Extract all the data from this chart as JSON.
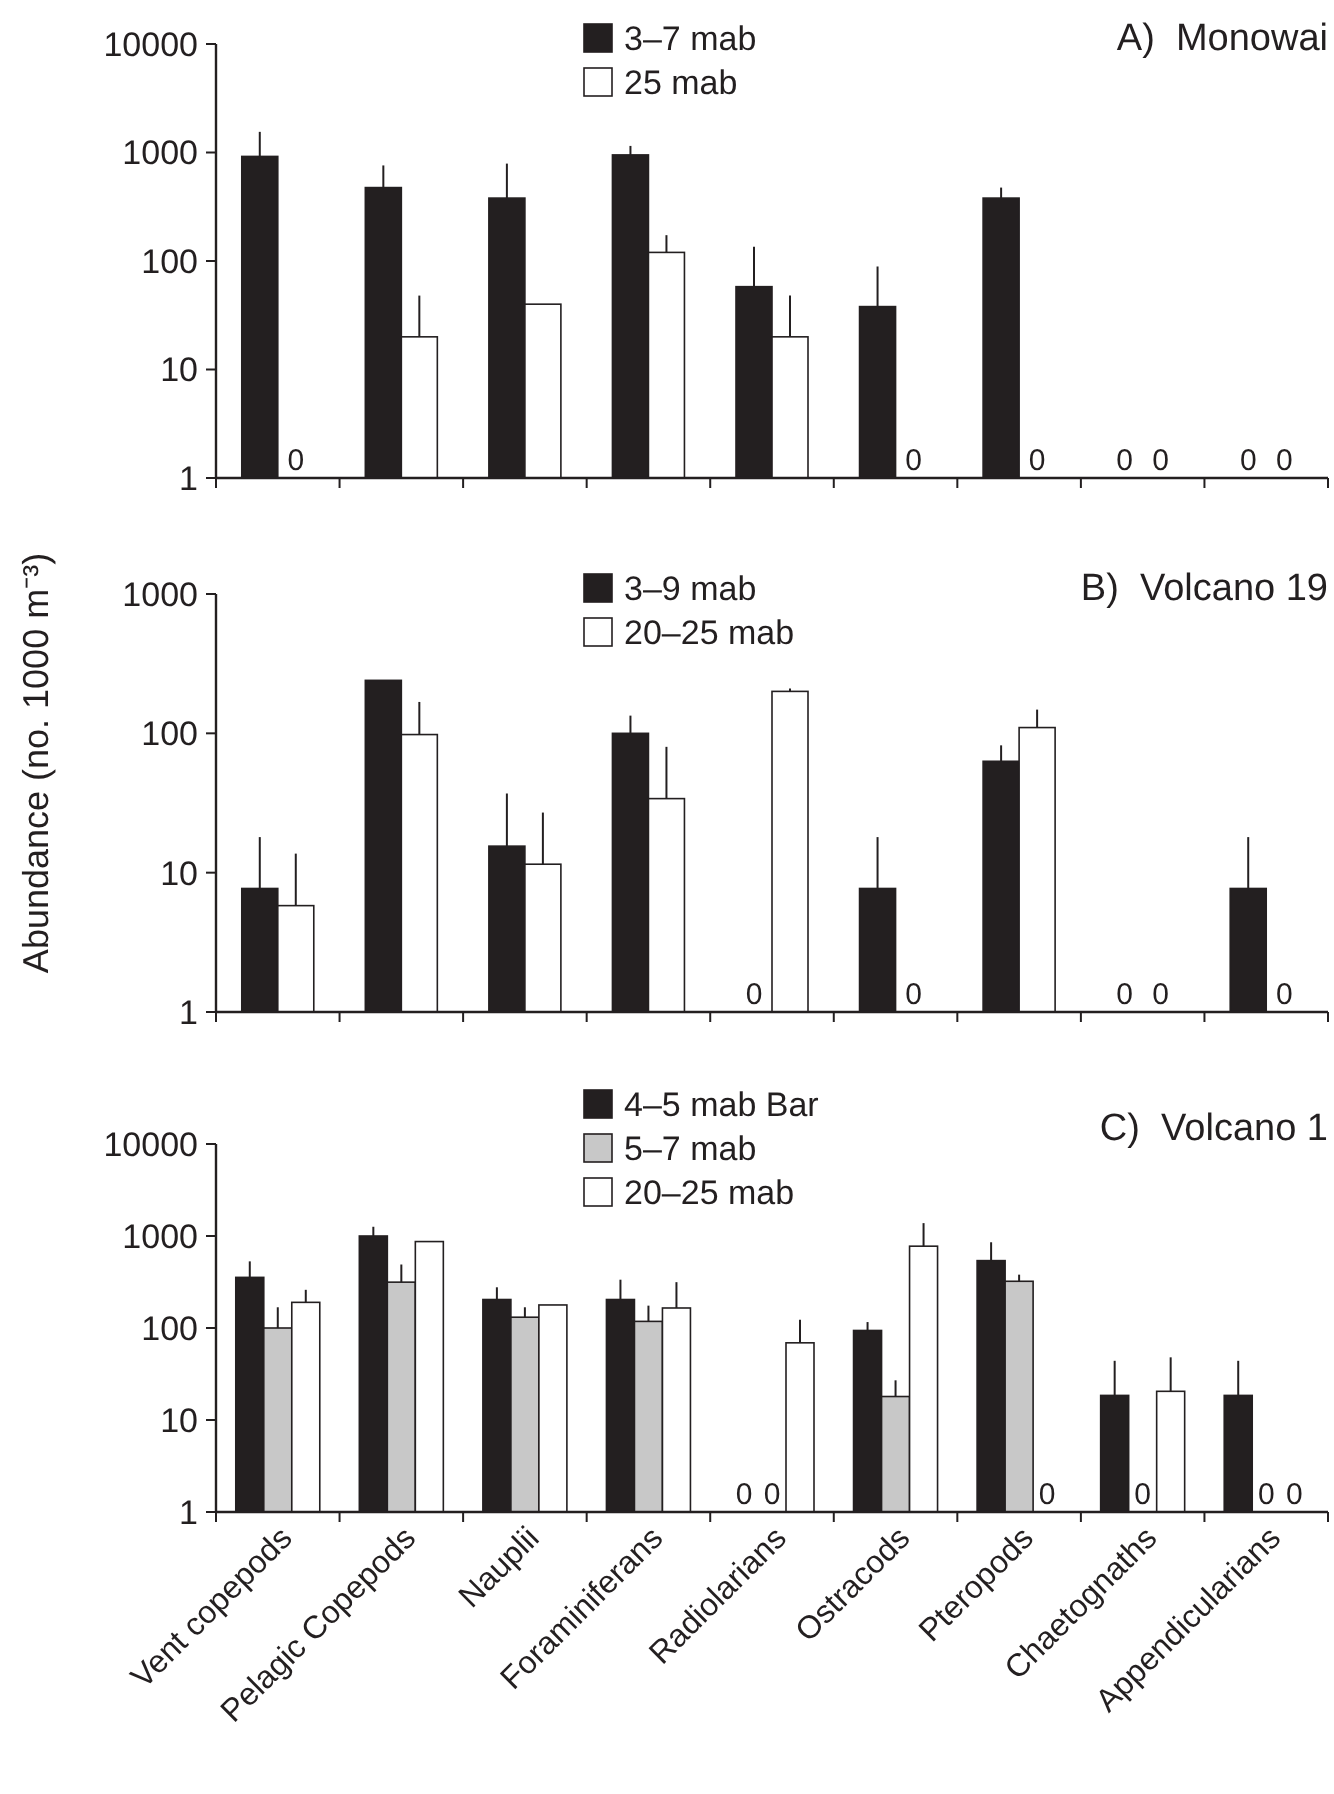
{
  "chart_data": [
    {
      "type": "bar",
      "title": "A)  Monowai",
      "categories": [
        "Vent copepods",
        "Pelagic Copepods",
        "Nauplii",
        "Foraminiferans",
        "Radiolarians",
        "Ostracods",
        "Pteropods",
        "Chaetognaths",
        "Appendicularians"
      ],
      "log": "y",
      "ylim": [
        1,
        10000
      ],
      "yticks": [
        1,
        10,
        100,
        1000,
        10000
      ],
      "legend": "top",
      "tick_labels": "y",
      "series": [
        {
          "name": "3–7 mab",
          "color": "#231f20",
          "values": [
            920,
            475,
            380,
            950,
            58,
            38,
            380,
            null,
            null
          ],
          "errors": [
            [
              920,
              1550
            ],
            [
              475,
              760
            ],
            [
              380,
              790
            ],
            [
              950,
              1150
            ],
            [
              58,
              135
            ],
            [
              38,
              89
            ],
            [
              380,
              475
            ],
            null,
            null
          ],
          "value_labels": [
            null,
            null,
            null,
            null,
            null,
            null,
            null,
            "0",
            "0"
          ]
        },
        {
          "name": "25 mab",
          "color": "#ffffff",
          "values": [
            null,
            20,
            40,
            120,
            20,
            null,
            null,
            null,
            null
          ],
          "errors": [
            null,
            [
              20,
              48
            ],
            null,
            [
              120,
              173
            ],
            [
              20,
              48
            ],
            null,
            null,
            null,
            null
          ],
          "value_labels": [
            "0",
            null,
            null,
            null,
            null,
            "0",
            "0",
            "0",
            "0"
          ]
        }
      ]
    },
    {
      "type": "bar",
      "title": "B)  Volcano 19",
      "ylabel": "Abundance (no. 1000 m⁻³)",
      "categories": [
        "Vent copepods",
        "Pelagic Copepods",
        "Nauplii",
        "Foraminiferans",
        "Radiolarians",
        "Ostracods",
        "Pteropods",
        "Chaetognaths",
        "Appendicularians"
      ],
      "log": "y",
      "ylim": [
        1,
        1000
      ],
      "yticks": [
        1,
        10,
        100,
        1000
      ],
      "legend": "top",
      "tick_labels": "y",
      "series": [
        {
          "name": "3–9 mab",
          "color": "#231f20",
          "values": [
            7.7,
            240,
            15.5,
            100,
            null,
            7.7,
            63,
            null,
            7.7
          ],
          "errors": [
            [
              7.7,
              18
            ],
            null,
            [
              15.5,
              37
            ],
            [
              100,
              134
            ],
            null,
            [
              7.7,
              18
            ],
            [
              63,
              82
            ],
            null,
            [
              7.7,
              18
            ]
          ],
          "value_labels": [
            null,
            null,
            null,
            null,
            "0",
            null,
            null,
            "0",
            null
          ]
        },
        {
          "name": "20–25 mab",
          "color": "#ffffff",
          "values": [
            5.8,
            98,
            11.5,
            34,
            200,
            null,
            110,
            null,
            null
          ],
          "errors": [
            [
              5.8,
              13.7
            ],
            [
              98,
              168
            ],
            [
              11.5,
              27
            ],
            [
              34,
              80
            ],
            [
              200,
              210
            ],
            null,
            [
              110,
              148
            ],
            null,
            null
          ],
          "value_labels": [
            null,
            null,
            null,
            null,
            null,
            "0",
            null,
            "0",
            "0"
          ]
        }
      ]
    },
    {
      "type": "bar",
      "title": "C)  Volcano 1",
      "categories": [
        "Vent copepods",
        "Pelagic Copepods",
        "Nauplii",
        "Foraminiferans",
        "Radiolarians",
        "Ostracods",
        "Pteropods",
        "Chaetognaths",
        "Appendicularians"
      ],
      "log": "y",
      "ylim": [
        1,
        10000
      ],
      "yticks": [
        1,
        10,
        100,
        1000,
        10000
      ],
      "legend": "top",
      "series": [
        {
          "name": "4–5 mab Bar",
          "color": "#231f20",
          "values": [
            355,
            1000,
            204,
            204,
            null,
            94,
            540,
            18.5,
            18.5
          ],
          "errors": [
            [
              355,
              530
            ],
            [
              1000,
              1260
            ],
            [
              204,
              277
            ],
            [
              204,
              335
            ],
            null,
            [
              94,
              116
            ],
            [
              540,
              855
            ],
            [
              18.5,
              44
            ],
            [
              18.5,
              44
            ]
          ],
          "value_labels": [
            null,
            null,
            null,
            null,
            "0",
            null,
            null,
            null,
            null
          ]
        },
        {
          "name": "5–7 mab",
          "color": "#c8c8c8",
          "values": [
            100,
            315,
            131,
            118,
            null,
            18,
            322,
            null,
            null
          ],
          "errors": [
            [
              100,
              168
            ],
            [
              315,
              490
            ],
            [
              131,
              168
            ],
            [
              118,
              175
            ],
            null,
            [
              18,
              27
            ],
            [
              322,
              380
            ],
            null,
            null
          ],
          "value_labels": [
            null,
            null,
            null,
            null,
            "0",
            null,
            null,
            "0",
            "0"
          ]
        },
        {
          "name": "20–25 mab",
          "color": "#ffffff",
          "values": [
            190,
            870,
            178,
            165,
            69,
            775,
            null,
            20.5,
            null
          ],
          "errors": [
            [
              190,
              260
            ],
            null,
            null,
            [
              165,
              315
            ],
            [
              69,
              123
            ],
            [
              775,
              1380
            ],
            null,
            [
              20.5,
              48
            ],
            null
          ],
          "value_labels": [
            null,
            null,
            null,
            null,
            null,
            null,
            "0",
            null,
            "0"
          ]
        }
      ]
    }
  ]
}
